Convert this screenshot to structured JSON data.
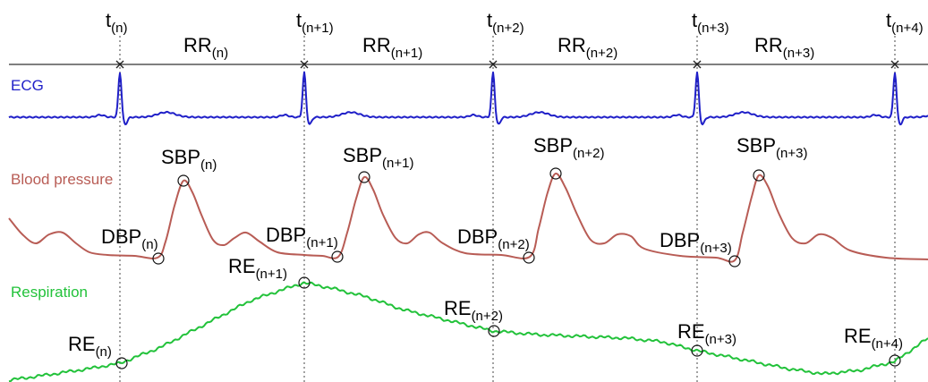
{
  "beat_times": [
    "t",
    "t",
    "t",
    "t",
    "t"
  ],
  "beat_time_subscripts": [
    "(n)",
    "(n+1)",
    "(n+2)",
    "(n+3)",
    "(n+4)"
  ],
  "rr_intervals": [
    "RR",
    "RR",
    "RR",
    "RR"
  ],
  "rr_subscripts": [
    "(n)",
    "(n+1)",
    "(n+2)",
    "(n+3)"
  ],
  "traces": {
    "ecg": {
      "label": "ECG",
      "color": "#1f1fc8"
    },
    "bp": {
      "label": "Blood pressure",
      "color": "#b85c55"
    },
    "resp": {
      "label": "Respiration",
      "color": "#22c23a"
    }
  },
  "sbp": {
    "name": "SBP",
    "subscripts": [
      "(n)",
      "(n+1)",
      "(n+2)",
      "(n+3)"
    ]
  },
  "dbp": {
    "name": "DBP",
    "subscripts": [
      "(n)",
      "(n+1)",
      "(n+2)",
      "(n+3)"
    ]
  },
  "re": {
    "name": "RE",
    "subscripts": [
      "(n)",
      "(n+1)",
      "(n+2)",
      "(n+3)",
      "(n+4)"
    ]
  }
}
